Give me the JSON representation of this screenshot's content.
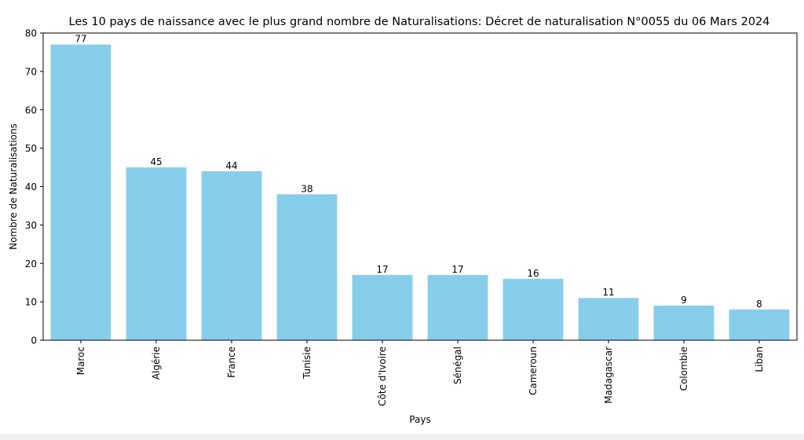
{
  "chart_data": {
    "type": "bar",
    "title": "Les 10 pays de naissance avec le plus grand nombre de Naturalisations: Décret de naturalisation N°0055 du 06 Mars 2024",
    "xlabel": "Pays",
    "ylabel": "Nombre de Naturalisations",
    "categories": [
      "Maroc",
      "Algérie",
      "France",
      "Tunisie",
      "Côte d'Ivoire",
      "Sénégal",
      "Cameroun",
      "Madagascar",
      "Colombie",
      "Liban"
    ],
    "values": [
      77,
      45,
      44,
      38,
      17,
      17,
      16,
      11,
      9,
      8
    ],
    "ylim": [
      0,
      80
    ],
    "yticks": [
      0,
      10,
      20,
      30,
      40,
      50,
      60,
      70,
      80
    ],
    "bar_color": "#87ceeb",
    "grid": false,
    "legend": "none"
  }
}
